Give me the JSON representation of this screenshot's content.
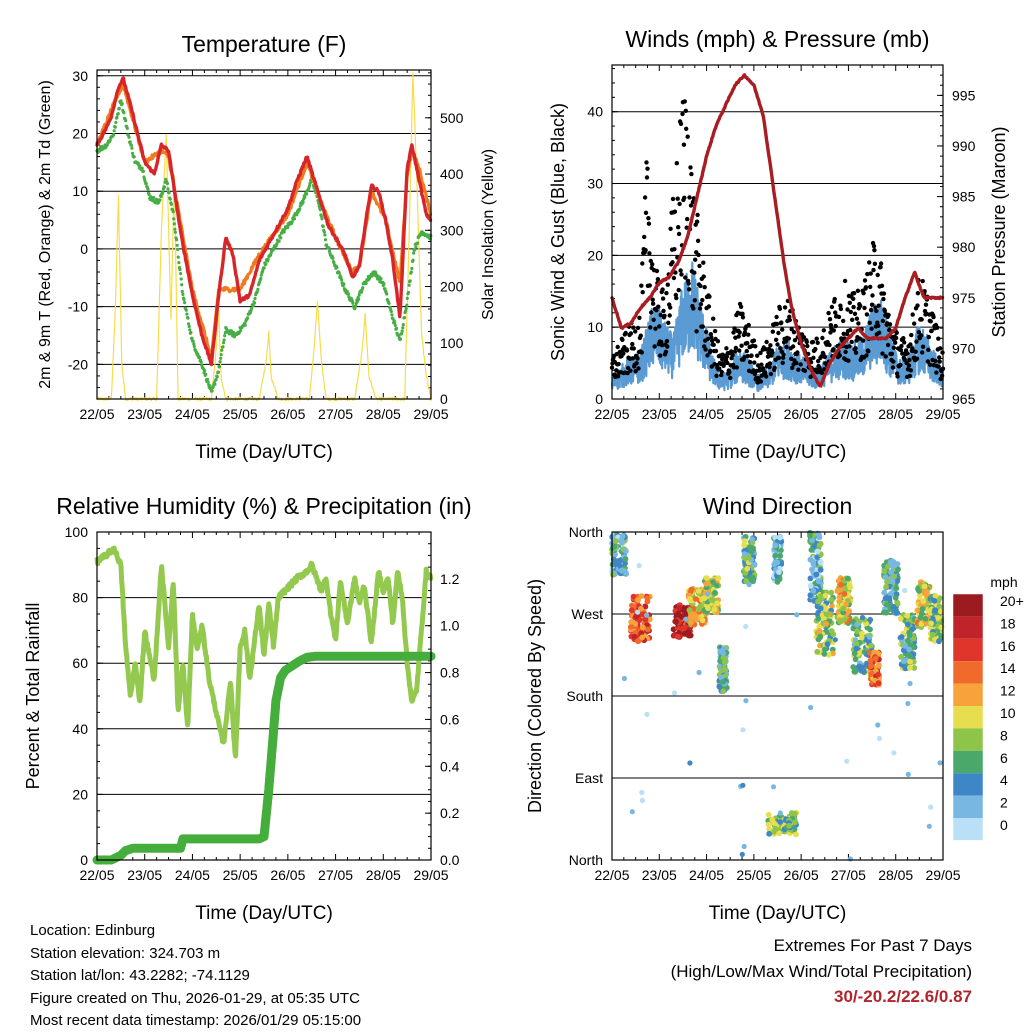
{
  "x_ticks": [
    "22/05",
    "23/05",
    "24/05",
    "25/05",
    "26/05",
    "27/05",
    "28/05",
    "29/05"
  ],
  "colors": {
    "temp2m": "#d6262a",
    "temp9m": "#f07a20",
    "dewpoint": "#47ae45",
    "insolation": "#f7dc4a",
    "sonic": "#5b9bd3",
    "gust": "#000000",
    "pressure": "#a81d22",
    "rh": "#93c94e",
    "rain": "#45ad3b"
  },
  "chart_data": [
    {
      "id": "temperature",
      "type": "line",
      "title": "Temperature (F)",
      "xlabel": "Time (Day/UTC)",
      "ylabel": "2m & 9m T (Red, Orange) & 2m Td (Green)",
      "y2label": "Solar Insolation (Yellow)",
      "xlim": [
        0,
        7
      ],
      "ylim": [
        -26,
        31
      ],
      "y2lim": [
        0,
        585
      ],
      "yticks": [
        -20,
        -10,
        0,
        10,
        20,
        30
      ],
      "y2ticks": [
        0,
        100,
        200,
        300,
        400,
        500
      ],
      "series": [
        {
          "name": "2m T",
          "color": "#d6262a",
          "x": [
            0,
            0.2,
            0.3,
            0.45,
            0.55,
            0.7,
            0.85,
            1.0,
            1.2,
            1.35,
            1.5,
            1.75,
            2.0,
            2.2,
            2.4,
            2.55,
            2.7,
            2.85,
            3.0,
            3.2,
            3.4,
            3.6,
            3.8,
            4.0,
            4.2,
            4.4,
            4.55,
            4.7,
            4.85,
            5.0,
            5.2,
            5.35,
            5.5,
            5.6,
            5.75,
            5.9,
            6.05,
            6.2,
            6.35,
            6.5,
            6.6,
            6.7,
            6.8,
            6.9,
            7.0
          ],
          "y": [
            18,
            21,
            23,
            28,
            29.5,
            25,
            20,
            15,
            13,
            18,
            17,
            3,
            -8,
            -15,
            -20,
            -8,
            2,
            -1,
            -9,
            -8,
            -2,
            1,
            4,
            7,
            12,
            16,
            12,
            8,
            4,
            2,
            -1,
            -5,
            -3,
            3,
            11,
            10,
            5,
            -2,
            -12,
            14,
            18,
            14,
            10,
            6,
            5
          ]
        },
        {
          "name": "9m T",
          "color": "#f07a20",
          "x": [
            0,
            0.45,
            0.55,
            0.7,
            1.0,
            1.35,
            1.5,
            2.0,
            2.4,
            2.55,
            3.0,
            3.4,
            4.0,
            4.4,
            4.7,
            5.0,
            5.35,
            5.5,
            5.75,
            6.05,
            6.35,
            6.5,
            6.6,
            6.75,
            6.9,
            7.0
          ],
          "y": [
            18,
            27,
            28.5,
            24,
            15,
            17,
            16,
            -7,
            -19,
            -7,
            -7,
            -1,
            6,
            15,
            8,
            2,
            -4,
            -3,
            10,
            5,
            -6,
            13,
            17,
            14,
            9,
            6
          ]
        },
        {
          "name": "2m Td",
          "color": "#47ae45",
          "x": [
            0,
            0.2,
            0.35,
            0.5,
            0.65,
            0.8,
            0.95,
            1.1,
            1.3,
            1.45,
            1.6,
            1.8,
            2.0,
            2.2,
            2.4,
            2.55,
            2.7,
            2.9,
            3.1,
            3.3,
            3.5,
            3.7,
            3.9,
            4.1,
            4.3,
            4.5,
            4.65,
            4.8,
            5.0,
            5.2,
            5.4,
            5.6,
            5.8,
            6.0,
            6.2,
            6.35,
            6.5,
            6.65,
            6.8,
            7.0
          ],
          "y": [
            17,
            18,
            20,
            26,
            20,
            15,
            14,
            9,
            8,
            12,
            6,
            -8,
            -16,
            -20,
            -25,
            -21,
            -14,
            -15,
            -13,
            -9,
            -3,
            0,
            3,
            5,
            8,
            12,
            8,
            1,
            -3,
            -7,
            -10,
            -6,
            -4,
            -6,
            -12,
            -16,
            -9,
            0,
            3,
            2
          ]
        },
        {
          "name": "Solar Insolation",
          "axis": "y2",
          "color": "#f7dc4a",
          "x": [
            0,
            0.3,
            0.38,
            0.45,
            0.52,
            0.6,
            1.25,
            1.35,
            1.45,
            1.55,
            1.62,
            1.7,
            2.4,
            2.5,
            2.55,
            2.6,
            2.7,
            3.4,
            3.55,
            3.6,
            3.65,
            3.8,
            4.45,
            4.55,
            4.62,
            4.7,
            4.8,
            5.4,
            5.55,
            5.62,
            5.7,
            5.85,
            6.45,
            6.55,
            6.62,
            6.7,
            6.8,
            6.9,
            7.0
          ],
          "y": [
            0,
            0,
            150,
            360,
            60,
            0,
            0,
            300,
            470,
            140,
            400,
            0,
            0,
            90,
            160,
            40,
            0,
            0,
            70,
            120,
            40,
            0,
            0,
            90,
            175,
            70,
            0,
            0,
            80,
            150,
            40,
            0,
            0,
            320,
            580,
            400,
            120,
            40,
            0
          ]
        }
      ]
    },
    {
      "id": "winds",
      "type": "scatter",
      "title": "Winds (mph) & Pressure (mb)",
      "xlabel": "Time (Day/UTC)",
      "ylabel": "Sonic Wind & Gust (Blue, Black)",
      "y2label": "Station Pressure (Maroon)",
      "xlim": [
        0,
        7
      ],
      "ylim": [
        0,
        46.5
      ],
      "y2lim": [
        965,
        998
      ],
      "yticks": [
        0,
        10,
        20,
        30,
        40
      ],
      "y2ticks": [
        965,
        970,
        975,
        980,
        985,
        990,
        995
      ],
      "series": [
        {
          "name": "Sonic Wind envelope",
          "color": "#5b9bd3",
          "x": [
            0,
            0.3,
            0.6,
            0.9,
            1.1,
            1.3,
            1.5,
            1.7,
            1.9,
            2.1,
            2.3,
            2.5,
            2.7,
            2.9,
            3.1,
            3.3,
            3.5,
            3.7,
            3.9,
            4.1,
            4.3,
            4.5,
            4.7,
            4.9,
            5.1,
            5.3,
            5.5,
            5.7,
            5.9,
            6.1,
            6.3,
            6.5,
            6.7,
            6.9,
            7.0
          ],
          "y": [
            3,
            5,
            6,
            13,
            10,
            8,
            15,
            18,
            12,
            6,
            3,
            4,
            7,
            5,
            3,
            4,
            7,
            8,
            6,
            5,
            4,
            5,
            7,
            8,
            7,
            8,
            12,
            13,
            8,
            5,
            6,
            10,
            8,
            5,
            3
          ]
        },
        {
          "name": "Gust envelope",
          "color": "#000000",
          "x": [
            0,
            0.3,
            0.6,
            0.75,
            0.9,
            1.1,
            1.3,
            1.5,
            1.6,
            1.7,
            1.9,
            2.1,
            2.3,
            2.5,
            2.7,
            2.9,
            3.1,
            3.3,
            3.5,
            3.7,
            3.9,
            4.1,
            4.3,
            4.5,
            4.7,
            4.9,
            5.1,
            5.3,
            5.5,
            5.6,
            5.7,
            5.9,
            6.1,
            6.3,
            6.5,
            6.7,
            6.9,
            7.0
          ],
          "y": [
            6,
            9,
            12,
            35,
            18,
            14,
            28,
            42,
            44,
            30,
            20,
            12,
            6,
            8,
            13,
            10,
            6,
            8,
            12,
            14,
            11,
            9,
            8,
            10,
            14,
            16,
            14,
            15,
            20,
            24,
            18,
            11,
            8,
            9,
            17,
            14,
            9,
            6
          ]
        },
        {
          "name": "Station Pressure",
          "axis": "y2",
          "color": "#a81d22",
          "x": [
            0,
            0.2,
            0.4,
            0.6,
            0.8,
            1.0,
            1.2,
            1.4,
            1.6,
            1.8,
            2.0,
            2.2,
            2.4,
            2.6,
            2.8,
            3.0,
            3.2,
            3.35,
            3.5,
            3.65,
            3.8,
            4.0,
            4.2,
            4.4,
            4.6,
            4.8,
            5.0,
            5.2,
            5.4,
            5.6,
            5.8,
            6.0,
            6.2,
            6.4,
            6.6,
            6.8,
            7.0
          ],
          "y": [
            975,
            972,
            972.5,
            974,
            975,
            976.5,
            977,
            978.5,
            981,
            985,
            989,
            992,
            994,
            996,
            997,
            996,
            993,
            988,
            983,
            978,
            974,
            970.5,
            968,
            966.2,
            968.5,
            970,
            971,
            972,
            971,
            971,
            971,
            972,
            975,
            977.5,
            975,
            975,
            975
          ]
        }
      ]
    },
    {
      "id": "humidity",
      "type": "line",
      "title": "Relative Humidity (%) & Precipitation (in)",
      "xlabel": "Time (Day/UTC)",
      "ylabel": "Percent & Total Rainfall",
      "xlim": [
        0,
        7
      ],
      "ylim": [
        0,
        100
      ],
      "y2lim": [
        0,
        1.4
      ],
      "yticks": [
        0,
        20,
        40,
        60,
        80,
        100
      ],
      "y2ticks": [
        0.0,
        0.2,
        0.4,
        0.6,
        0.8,
        1.0,
        1.2
      ],
      "series": [
        {
          "name": "Relative Humidity",
          "color": "#93c94e",
          "x": [
            0,
            0.2,
            0.35,
            0.5,
            0.6,
            0.7,
            0.8,
            0.9,
            1.0,
            1.1,
            1.2,
            1.35,
            1.5,
            1.6,
            1.7,
            1.8,
            1.9,
            2.0,
            2.1,
            2.2,
            2.35,
            2.5,
            2.65,
            2.8,
            2.9,
            3.0,
            3.1,
            3.2,
            3.4,
            3.5,
            3.6,
            3.7,
            3.8,
            4.0,
            4.2,
            4.4,
            4.5,
            4.6,
            4.7,
            4.8,
            4.9,
            5.0,
            5.1,
            5.25,
            5.4,
            5.5,
            5.6,
            5.75,
            5.9,
            6.0,
            6.1,
            6.2,
            6.3,
            6.4,
            6.5,
            6.6,
            6.7,
            6.8,
            6.9,
            7.0
          ],
          "y": [
            91,
            93,
            95,
            90,
            65,
            50,
            60,
            48,
            70,
            62,
            55,
            90,
            65,
            85,
            45,
            60,
            40,
            75,
            64,
            72,
            55,
            45,
            35,
            55,
            30,
            65,
            70,
            55,
            78,
            62,
            78,
            65,
            80,
            83,
            86,
            88,
            90,
            86,
            82,
            86,
            75,
            67,
            85,
            72,
            86,
            78,
            84,
            66,
            88,
            82,
            86,
            72,
            88,
            80,
            60,
            48,
            52,
            70,
            88,
            86
          ]
        },
        {
          "name": "Total Rainfall",
          "axis": "y2",
          "color": "#45ad3b",
          "x": [
            0,
            0.3,
            0.5,
            0.6,
            0.75,
            1.0,
            1.5,
            1.75,
            1.8,
            2.0,
            2.5,
            3.0,
            3.4,
            3.5,
            3.6,
            3.7,
            3.75,
            3.85,
            3.95,
            4.1,
            4.25,
            4.4,
            4.6,
            5.0,
            6.0,
            7.0
          ],
          "y": [
            0,
            0,
            0.02,
            0.04,
            0.05,
            0.05,
            0.05,
            0.05,
            0.09,
            0.09,
            0.09,
            0.09,
            0.09,
            0.1,
            0.3,
            0.55,
            0.68,
            0.78,
            0.81,
            0.83,
            0.85,
            0.865,
            0.87,
            0.87,
            0.87,
            0.87
          ]
        }
      ]
    },
    {
      "id": "direction",
      "type": "scatter",
      "title": "Wind Direction",
      "xlabel": "Time (Day/UTC)",
      "ylabel": "Direction (Colored By Speed)",
      "xlim": [
        0,
        7
      ],
      "ylim": [
        0,
        360
      ],
      "ytick_values": [
        0,
        90,
        180,
        270,
        360
      ],
      "ytick_labels": [
        "North",
        "East",
        "South",
        "West",
        "North"
      ],
      "legend": {
        "title": "mph",
        "labels": [
          "20+",
          "18",
          "16",
          "14",
          "12",
          "10",
          "8",
          "6",
          "4",
          "2",
          "0"
        ],
        "colors": [
          "#9b1b1e",
          "#c1232a",
          "#e0352b",
          "#f06a2b",
          "#f7a23a",
          "#e6de4f",
          "#8ec449",
          "#4aa86b",
          "#3f86c6",
          "#79b7e3",
          "#b9e0f6"
        ]
      },
      "clusters": [
        {
          "t": 0.15,
          "dir": 335,
          "spread_t": 0.15,
          "spread_d": 22,
          "speed": 4
        },
        {
          "t": 0.6,
          "dir": 265,
          "spread_t": 0.2,
          "spread_d": 25,
          "speed": 15
        },
        {
          "t": 1.5,
          "dir": 262,
          "spread_t": 0.2,
          "spread_d": 18,
          "speed": 18
        },
        {
          "t": 1.8,
          "dir": 278,
          "spread_t": 0.18,
          "spread_d": 20,
          "speed": 11
        },
        {
          "t": 2.1,
          "dir": 290,
          "spread_t": 0.15,
          "spread_d": 20,
          "speed": 9
        },
        {
          "t": 2.35,
          "dir": 210,
          "spread_t": 0.08,
          "spread_d": 25,
          "speed": 5
        },
        {
          "t": 2.9,
          "dir": 330,
          "spread_t": 0.12,
          "spread_d": 25,
          "speed": 6
        },
        {
          "t": 3.5,
          "dir": 330,
          "spread_t": 0.08,
          "spread_d": 25,
          "speed": 3
        },
        {
          "t": 3.6,
          "dir": 40,
          "spread_t": 0.3,
          "spread_d": 12,
          "speed": 7
        },
        {
          "t": 4.3,
          "dir": 320,
          "spread_t": 0.12,
          "spread_d": 40,
          "speed": 4
        },
        {
          "t": 4.5,
          "dir": 260,
          "spread_t": 0.18,
          "spread_d": 35,
          "speed": 8
        },
        {
          "t": 4.9,
          "dir": 285,
          "spread_t": 0.14,
          "spread_d": 25,
          "speed": 10
        },
        {
          "t": 5.3,
          "dir": 235,
          "spread_t": 0.2,
          "spread_d": 30,
          "speed": 6
        },
        {
          "t": 5.55,
          "dir": 210,
          "spread_t": 0.1,
          "spread_d": 18,
          "speed": 14
        },
        {
          "t": 5.9,
          "dir": 300,
          "spread_t": 0.15,
          "spread_d": 30,
          "speed": 5
        },
        {
          "t": 6.25,
          "dir": 240,
          "spread_t": 0.15,
          "spread_d": 30,
          "speed": 6
        },
        {
          "t": 6.6,
          "dir": 280,
          "spread_t": 0.15,
          "spread_d": 25,
          "speed": 10
        },
        {
          "t": 6.85,
          "dir": 265,
          "spread_t": 0.12,
          "spread_d": 25,
          "speed": 7
        }
      ]
    }
  ],
  "info": {
    "location": "Location: Edinburg",
    "elevation": "Station elevation: 324.703 m",
    "latlon": "Station lat/lon: 43.2282; -74.1129",
    "created": "Figure created on Thu, 2026-01-29, at 05:35 UTC",
    "recent": "Most recent data timestamp: 2026/01/29 05:15:00"
  },
  "extremes": {
    "line1": "Extremes For Past 7 Days",
    "line2": "(High/Low/Max Wind/Total Precipitation)",
    "value": "30/-20.2/22.6/0.87"
  }
}
